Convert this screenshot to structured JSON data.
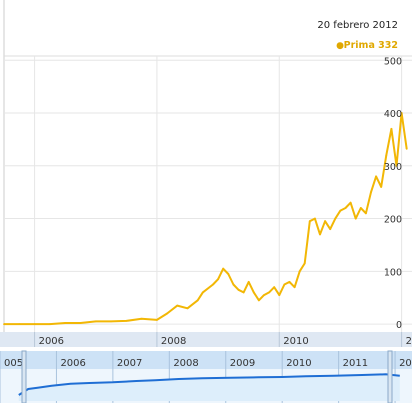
{
  "header": {
    "date": "20 febrero 2012",
    "legend_bullet": "●",
    "series_label": "Prima 332"
  },
  "colors": {
    "main_line": "#f2b705",
    "legend_text": "#e0a800",
    "navigator_line": "#1f6ed4",
    "navigator_fill": "#ddeefb",
    "navigator_band": "#cde2f6",
    "grid": "#e6e6e6",
    "axis_text": "#333333"
  },
  "chart_data": [
    {
      "type": "line",
      "name": "main",
      "title": "",
      "series": [
        {
          "name": "Prima 332",
          "x": [
            "2005-07",
            "2005-10",
            "2006-01",
            "2006-04",
            "2006-07",
            "2006-10",
            "2007-01",
            "2007-04",
            "2007-07",
            "2007-10",
            "2008-01",
            "2008-03",
            "2008-05",
            "2008-07",
            "2008-09",
            "2008-10",
            "2008-12",
            "2009-01",
            "2009-02",
            "2009-03",
            "2009-04",
            "2009-05",
            "2009-06",
            "2009-07",
            "2009-08",
            "2009-09",
            "2009-10",
            "2009-11",
            "2009-12",
            "2010-01",
            "2010-02",
            "2010-03",
            "2010-04",
            "2010-05",
            "2010-06",
            "2010-07",
            "2010-08",
            "2010-09",
            "2010-10",
            "2010-11",
            "2010-12",
            "2011-01",
            "2011-02",
            "2011-03",
            "2011-04",
            "2011-05",
            "2011-06",
            "2011-07",
            "2011-08",
            "2011-09",
            "2011-10",
            "2011-11",
            "2011-12",
            "2012-01",
            "2012-02"
          ],
          "values": [
            0,
            0,
            0,
            0,
            2,
            2,
            5,
            5,
            6,
            10,
            8,
            20,
            35,
            30,
            45,
            60,
            75,
            85,
            105,
            95,
            75,
            65,
            60,
            80,
            60,
            45,
            55,
            60,
            70,
            55,
            75,
            80,
            70,
            100,
            115,
            195,
            200,
            170,
            195,
            180,
            200,
            215,
            220,
            230,
            200,
            220,
            210,
            250,
            280,
            260,
            320,
            370,
            300,
            400,
            332
          ]
        }
      ],
      "x_ticks": [
        "2006",
        "2008",
        "2010",
        "201"
      ],
      "y_ticks": [
        "0",
        "100",
        "200",
        "300",
        "400",
        "500"
      ],
      "ylim": [
        -15,
        510
      ],
      "grid": true
    },
    {
      "type": "area",
      "name": "navigator",
      "series": [
        {
          "name": "",
          "x": [
            "2005-05",
            "2005-07",
            "2005-09",
            "2005-12",
            "2006-04",
            "2006-08",
            "2007-01",
            "2007-06",
            "2007-10",
            "2008-03",
            "2008-08",
            "2009-02",
            "2009-08",
            "2010-01",
            "2010-06",
            "2010-12",
            "2011-06",
            "2011-11",
            "2012-02"
          ],
          "values": [
            0.9,
            1.8,
            2.0,
            2.3,
            2.6,
            2.7,
            2.8,
            3.0,
            3.1,
            3.3,
            3.4,
            3.5,
            3.55,
            3.6,
            3.7,
            3.8,
            3.9,
            4.0,
            3.8
          ]
        }
      ],
      "x_ticks": [
        "005",
        "2006",
        "2007",
        "2008",
        "2009",
        "2010",
        "2011",
        "20"
      ],
      "ylim": [
        0,
        4.5
      ]
    }
  ]
}
